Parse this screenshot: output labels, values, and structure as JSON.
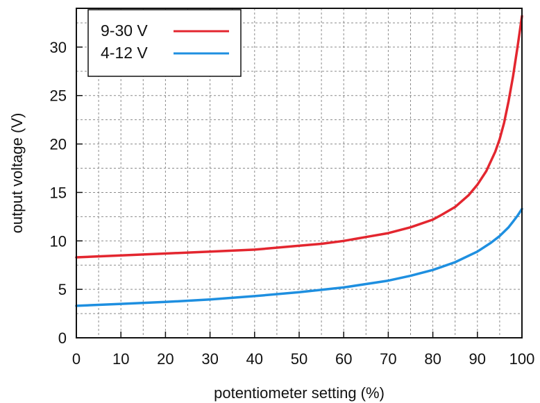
{
  "chart_data": {
    "type": "line",
    "title": "",
    "xlabel": "potentiometer setting (%)",
    "ylabel": "output voltage (V)",
    "xlim": [
      0,
      100
    ],
    "ylim": [
      0,
      34
    ],
    "xticks": [
      0,
      10,
      20,
      30,
      40,
      50,
      60,
      70,
      80,
      90,
      100
    ],
    "yticks": [
      0,
      5,
      10,
      15,
      20,
      25,
      30
    ],
    "grid": true,
    "legend_position": "top-left",
    "series": [
      {
        "name": "9-30 V",
        "color": "#e3262f",
        "x": [
          0,
          10,
          20,
          30,
          40,
          50,
          55,
          60,
          65,
          70,
          75,
          80,
          82,
          85,
          88,
          90,
          92,
          94,
          95,
          96,
          97,
          98,
          99,
          100
        ],
        "y": [
          8.3,
          8.5,
          8.7,
          8.9,
          9.1,
          9.5,
          9.7,
          10.0,
          10.4,
          10.8,
          11.4,
          12.2,
          12.7,
          13.5,
          14.7,
          15.8,
          17.2,
          19.2,
          20.5,
          22.2,
          24.4,
          27.0,
          30.0,
          33.2
        ]
      },
      {
        "name": "4-12 V",
        "color": "#1e8fe0",
        "x": [
          0,
          10,
          20,
          30,
          40,
          50,
          60,
          70,
          75,
          80,
          85,
          90,
          93,
          95,
          97,
          98,
          99,
          100
        ],
        "y": [
          3.3,
          3.5,
          3.7,
          3.95,
          4.3,
          4.7,
          5.2,
          5.9,
          6.4,
          7.0,
          7.8,
          8.9,
          9.8,
          10.5,
          11.4,
          12.0,
          12.6,
          13.3
        ]
      }
    ]
  }
}
